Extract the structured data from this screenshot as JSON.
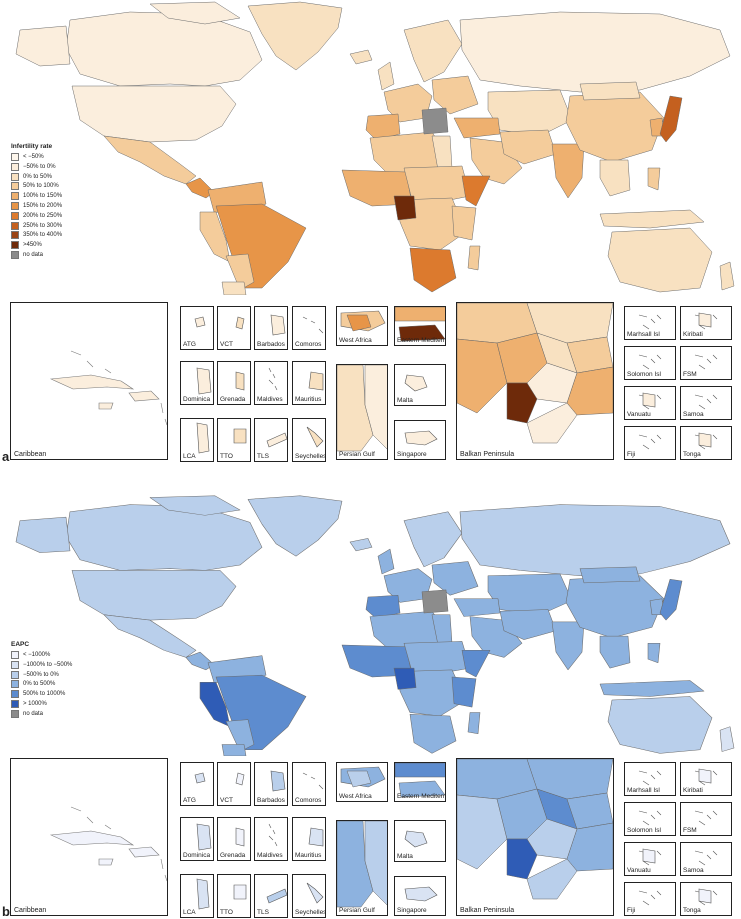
{
  "panels": [
    {
      "id": "a",
      "letter": "a",
      "legend_title": "Infertility rate",
      "legend": [
        {
          "label": "< −50%",
          "color": "#fdf6ec"
        },
        {
          "label": "−50% to 0%",
          "color": "#fbeedd"
        },
        {
          "label": "0% to 50%",
          "color": "#f8e1c1"
        },
        {
          "label": "50% to 100%",
          "color": "#f4cc9b"
        },
        {
          "label": "100% to 150%",
          "color": "#eeb06f"
        },
        {
          "label": "150% to 200%",
          "color": "#e79548"
        },
        {
          "label": "200% to 250%",
          "color": "#dc7a2e"
        },
        {
          "label": "250% to 300%",
          "color": "#c4601f"
        },
        {
          "label": "350% to 400%",
          "color": "#9a4415"
        },
        {
          "label": ">450%",
          "color": "#6e2a0a"
        },
        {
          "label": "no data",
          "color": "#8c8c8c"
        }
      ]
    },
    {
      "id": "b",
      "letter": "b",
      "legend_title": "EAPC",
      "legend": [
        {
          "label": "< −1000%",
          "color": "#f1f3fb"
        },
        {
          "label": "−1000% to −500%",
          "color": "#d9e3f3"
        },
        {
          "label": "−500% to 0%",
          "color": "#b9cfeb"
        },
        {
          "label": "0% to 500%",
          "color": "#8db2df"
        },
        {
          "label": "500% to 1000%",
          "color": "#5d8ccf"
        },
        {
          "label": "> 1000%",
          "color": "#2f5cb6"
        },
        {
          "label": "no data",
          "color": "#8c8c8c"
        }
      ]
    }
  ],
  "insets": {
    "caribbean": "Caribbean",
    "small": [
      "ATG",
      "VCT",
      "Barbados",
      "Comoros",
      "Dominica",
      "Grenada",
      "Maldives",
      "Mauritius",
      "LCA",
      "TTO",
      "TLS",
      "Seychelles"
    ],
    "west_africa": "West Africa",
    "eastern_med": "Eastern Mediterranean",
    "persian_gulf": "Persian Gulf",
    "malta": "Malta",
    "singapore": "Singapore",
    "balkan": "Balkan Peninsula",
    "pacific": [
      "Marhsall Isl",
      "Kiribati",
      "Solomon Isl",
      "FSM",
      "Vanuatu",
      "Samoa",
      "Fiji",
      "Tonga"
    ]
  }
}
